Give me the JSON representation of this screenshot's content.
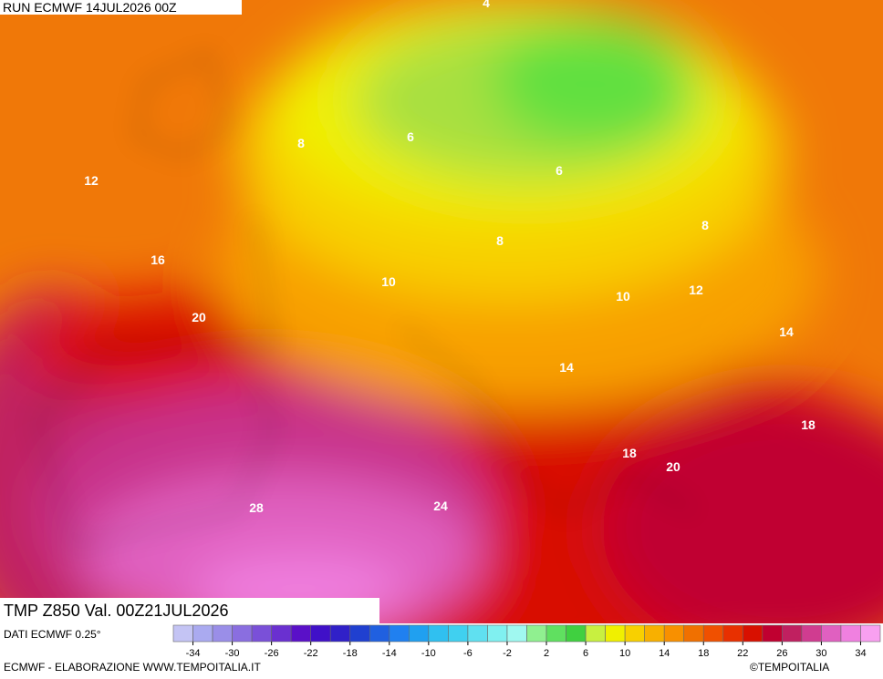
{
  "header": {
    "run": "RUN ECMWF 14JUL2026 00Z",
    "field": "TMP Z850 Val. 00Z21JUL2026"
  },
  "contour_labels": [
    4,
    6,
    6,
    8,
    8,
    8,
    12,
    16,
    10,
    10,
    12,
    20,
    14,
    14,
    18,
    18,
    20,
    28,
    24
  ],
  "colorbar": {
    "source": "DATI ECMWF 0.25°",
    "lim": [
      -36,
      36
    ],
    "ticks": [
      -34,
      -30,
      -26,
      -22,
      -18,
      -14,
      -10,
      -6,
      -2,
      2,
      6,
      10,
      14,
      18,
      22,
      26,
      30,
      34
    ],
    "colors": [
      "#c4c4f4",
      "#aaaaf0",
      "#9a8ee8",
      "#8a6ee0",
      "#7a50d8",
      "#6a30d0",
      "#5a10c8",
      "#4010c8",
      "#3020c8",
      "#2040d0",
      "#2060e0",
      "#2080f0",
      "#20a0f0",
      "#30c0f0",
      "#40d0f0",
      "#60e0f0",
      "#80f0f0",
      "#a0f8f0",
      "#90f090",
      "#60e060",
      "#40d040",
      "#c8f040",
      "#f0f000",
      "#f8d000",
      "#f8b000",
      "#f89000",
      "#f07000",
      "#f05000",
      "#e83000",
      "#d81000",
      "#c00030",
      "#c02060",
      "#d03c90",
      "#e060c0",
      "#f080e0",
      "#f8a0f0"
    ]
  },
  "footer": {
    "credit": "ECMWF - ELABORAZIONE WWW.TEMPOITALIA.IT",
    "copyright": "©TEMPOITALIA"
  }
}
